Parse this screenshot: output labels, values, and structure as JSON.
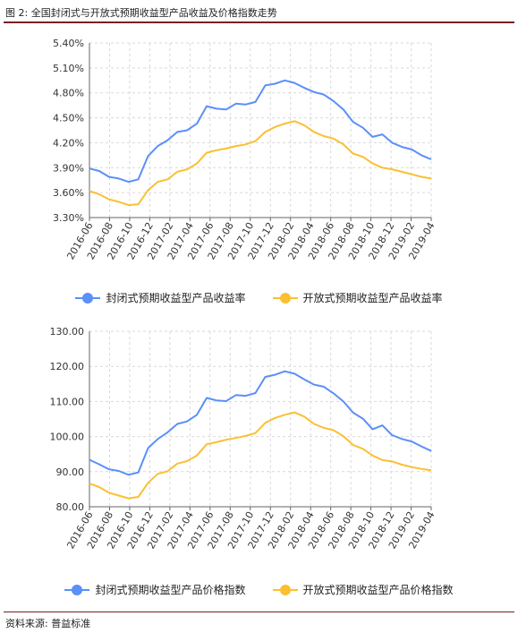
{
  "figure": {
    "title": "图 2: 全国封闭式与开放式预期收益型产品收益及价格指数走势",
    "source": "资料来源: 普益标准"
  },
  "colors": {
    "closed": "#5b8ff9",
    "open": "#fac032",
    "grid": "#d9d9d9",
    "axis": "#666666"
  },
  "chart_data": [
    {
      "type": "line",
      "title": "",
      "xlabel": "",
      "ylabel": "",
      "ylim": [
        3.3,
        5.4
      ],
      "yticks": [
        "5.40%",
        "5.10%",
        "4.80%",
        "4.50%",
        "4.20%",
        "3.90%",
        "3.60%",
        "3.30%"
      ],
      "x_tick_labels": [
        "2016-06",
        "2016-08",
        "2016-10",
        "2016-12",
        "2017-02",
        "2017-04",
        "2017-06",
        "2017-08",
        "2017-10",
        "2017-12",
        "2018-02",
        "2018-04",
        "2018-06",
        "2018-08",
        "2018-10",
        "2018-12",
        "2019-02",
        "2019-04"
      ],
      "grid": true,
      "legend_position": "bottom",
      "series": [
        {
          "name": "封闭式预期收益型产品收益率",
          "color": "#5b8ff9",
          "values": [
            3.89,
            3.86,
            3.79,
            3.77,
            3.73,
            3.76,
            4.04,
            4.16,
            4.23,
            4.33,
            4.35,
            4.43,
            4.64,
            4.61,
            4.6,
            4.67,
            4.66,
            4.69,
            4.89,
            4.91,
            4.95,
            4.92,
            4.86,
            4.81,
            4.78,
            4.7,
            4.6,
            4.45,
            4.38,
            4.27,
            4.3,
            4.2,
            4.15,
            4.12,
            4.05,
            4.0
          ]
        },
        {
          "name": "开放式预期收益型产品收益率",
          "color": "#fac032",
          "values": [
            3.62,
            3.58,
            3.52,
            3.49,
            3.45,
            3.46,
            3.63,
            3.73,
            3.76,
            3.85,
            3.88,
            3.95,
            4.08,
            4.11,
            4.13,
            4.16,
            4.18,
            4.22,
            4.33,
            4.39,
            4.43,
            4.46,
            4.41,
            4.33,
            4.28,
            4.25,
            4.18,
            4.07,
            4.03,
            3.95,
            3.9,
            3.88,
            3.85,
            3.82,
            3.79,
            3.77
          ]
        }
      ]
    },
    {
      "type": "line",
      "title": "",
      "xlabel": "",
      "ylabel": "",
      "ylim": [
        80,
        130
      ],
      "yticks": [
        "130.00",
        "120.00",
        "110.00",
        "100.00",
        "90.00",
        "80.00"
      ],
      "x_tick_labels": [
        "2016-06",
        "2016-08",
        "2016-10",
        "2016-12",
        "2017-02",
        "2017-04",
        "2017-06",
        "2017-08",
        "2017-10",
        "2017-12",
        "2018-02",
        "2018-04",
        "2018-06",
        "2018-08",
        "2018-10",
        "2018-12",
        "2019-02",
        "2019-04"
      ],
      "grid": true,
      "legend_position": "bottom",
      "series": [
        {
          "name": "封闭式预期收益型产品价格指数",
          "color": "#5b8ff9",
          "values": [
            93.4,
            92.1,
            90.7,
            90.2,
            89.1,
            89.8,
            96.7,
            99.3,
            101.2,
            103.6,
            104.3,
            106.2,
            111.0,
            110.3,
            110.1,
            111.8,
            111.6,
            112.4,
            117.0,
            117.6,
            118.6,
            117.9,
            116.3,
            114.8,
            114.2,
            112.3,
            110.0,
            106.8,
            105.1,
            102.1,
            103.2,
            100.4,
            99.3,
            98.6,
            97.2,
            95.9
          ]
        },
        {
          "name": "开放式预期收益型产品价格指数",
          "color": "#fac032",
          "values": [
            86.6,
            85.6,
            84.0,
            83.2,
            82.4,
            82.8,
            86.8,
            89.4,
            90.1,
            92.3,
            93.0,
            94.6,
            97.8,
            98.4,
            99.1,
            99.6,
            100.2,
            101.0,
            103.9,
            105.3,
            106.2,
            106.9,
            105.7,
            103.6,
            102.5,
            101.8,
            100.1,
            97.6,
            96.5,
            94.6,
            93.3,
            92.9,
            92.0,
            91.3,
            90.8,
            90.4
          ]
        }
      ]
    }
  ]
}
